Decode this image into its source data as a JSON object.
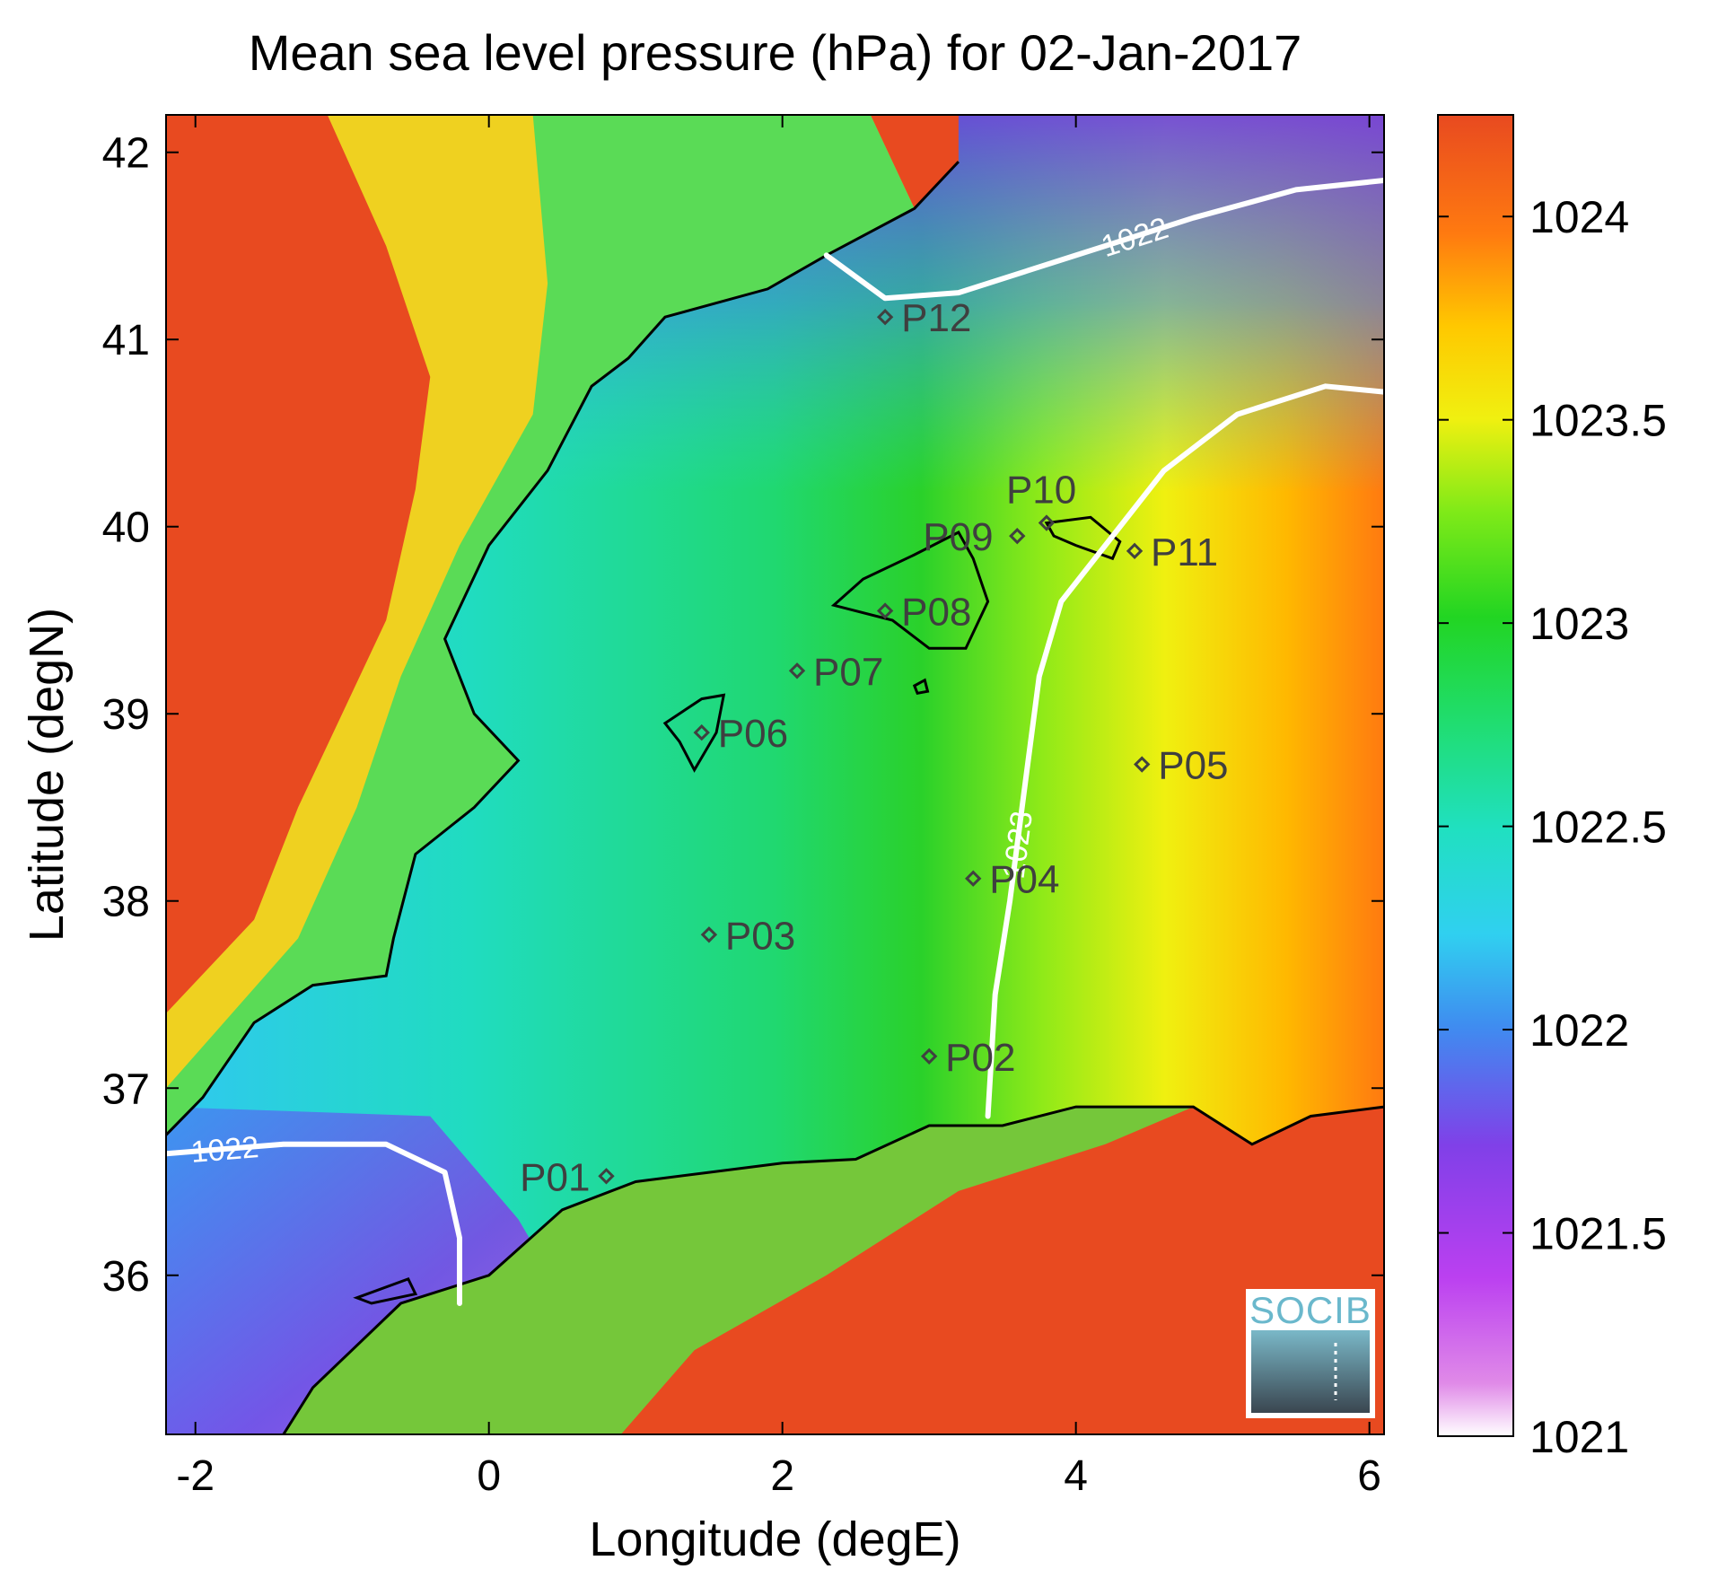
{
  "chart_data": {
    "type": "heatmap",
    "title": "Mean sea level pressure (hPa) for 02-Jan-2017",
    "xlabel": "Longitude (degE)",
    "ylabel": "Latitude (degN)",
    "xlim": [
      -2.2,
      6.1
    ],
    "ylim": [
      35.15,
      42.2
    ],
    "xticks": [
      -2,
      0,
      2,
      4,
      6
    ],
    "xtick_labels": [
      "-2",
      "0",
      "2",
      "4",
      "6"
    ],
    "yticks": [
      36,
      37,
      38,
      39,
      40,
      41,
      42
    ],
    "ytick_labels": [
      "36",
      "37",
      "38",
      "39",
      "40",
      "41",
      "42"
    ],
    "colorbar": {
      "range": [
        1021,
        1024.25
      ],
      "ticks": [
        1021,
        1021.5,
        1022,
        1022.5,
        1023,
        1023.5,
        1024
      ],
      "tick_labels": [
        "1021",
        "1021.5",
        "1022",
        "1022.5",
        "1023",
        "1023.5",
        "1024"
      ],
      "colormap": [
        "#ffffff",
        "#e08ae8",
        "#bb40f0",
        "#8040e8",
        "#3f8cf0",
        "#30d0f0",
        "#20e0c0",
        "#20dd70",
        "#22d522",
        "#80ea18",
        "#f0f010",
        "#ffc800",
        "#ff7a10",
        "#e84a20"
      ]
    },
    "field": {
      "sea_pressure_west_to_east": "1022.0 near Spain coast rising to 1023.9 east of 5E",
      "land_pressure": ">= 1024 over Iberia and North Africa interior"
    },
    "contours": [
      {
        "level": 1022,
        "label": "1022",
        "path": [
          [
            2.3,
            41.45
          ],
          [
            2.7,
            41.22
          ],
          [
            3.2,
            41.25
          ],
          [
            4.0,
            41.45
          ],
          [
            4.8,
            41.65
          ],
          [
            5.5,
            41.8
          ],
          [
            6.1,
            41.85
          ]
        ]
      },
      {
        "level": 1022,
        "label": "1022",
        "path": [
          [
            -2.2,
            36.65
          ],
          [
            -1.4,
            36.7
          ],
          [
            -0.7,
            36.7
          ],
          [
            -0.3,
            36.55
          ],
          [
            -0.2,
            36.2
          ],
          [
            -0.2,
            35.85
          ]
        ]
      },
      {
        "level": 1023,
        "label": "1023",
        "path": [
          [
            3.4,
            36.85
          ],
          [
            3.45,
            37.5
          ],
          [
            3.55,
            38.0
          ],
          [
            3.65,
            38.6
          ],
          [
            3.75,
            39.2
          ],
          [
            3.9,
            39.6
          ],
          [
            4.2,
            39.9
          ],
          [
            4.6,
            40.3
          ],
          [
            5.1,
            40.6
          ],
          [
            5.7,
            40.75
          ],
          [
            6.1,
            40.72
          ]
        ]
      }
    ],
    "stations": [
      {
        "name": "P01",
        "lon": 0.8,
        "lat": 36.53
      },
      {
        "name": "P02",
        "lon": 3.0,
        "lat": 37.17
      },
      {
        "name": "P03",
        "lon": 1.5,
        "lat": 37.82
      },
      {
        "name": "P04",
        "lon": 3.3,
        "lat": 38.12
      },
      {
        "name": "P05",
        "lon": 4.45,
        "lat": 38.73
      },
      {
        "name": "P06",
        "lon": 1.45,
        "lat": 38.9
      },
      {
        "name": "P07",
        "lon": 2.1,
        "lat": 39.23
      },
      {
        "name": "P08",
        "lon": 2.7,
        "lat": 39.55
      },
      {
        "name": "P09",
        "lon": 3.6,
        "lat": 39.95
      },
      {
        "name": "P10",
        "lon": 3.8,
        "lat": 40.02
      },
      {
        "name": "P11",
        "lon": 4.4,
        "lat": 39.87
      },
      {
        "name": "P12",
        "lon": 2.7,
        "lat": 41.12
      }
    ],
    "grid": false
  },
  "logo_text": "SOCIB",
  "colors": {
    "land_high": "#e84a20",
    "sea_low": "#30c8f0",
    "coast": "#000000",
    "contour": "#ffffff",
    "station": "#404040"
  }
}
